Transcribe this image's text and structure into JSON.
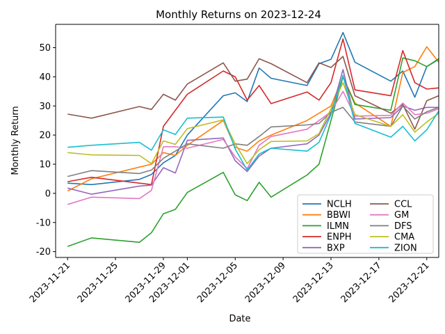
{
  "chart_data": {
    "type": "line",
    "title": "Monthly Returns on 2023-12-24",
    "xlabel": "Date",
    "ylabel": "Monthly Return",
    "ylim": [
      -22,
      58
    ],
    "xlim": [
      "2023-11-20",
      "2023-12-22"
    ],
    "yticks": [
      -20,
      -10,
      0,
      10,
      20,
      30,
      40,
      50
    ],
    "xticks": [
      "2023-11-21",
      "2023-11-25",
      "2023-11-29",
      "2023-12-01",
      "2023-12-05",
      "2023-12-09",
      "2023-12-13",
      "2023-12-17",
      "2023-12-21"
    ],
    "grid": false,
    "legend": {
      "position": "lower-right",
      "columns": 2
    },
    "x": [
      "2023-11-21",
      "2023-11-23",
      "2023-11-27",
      "2023-11-28",
      "2023-11-29",
      "2023-11-30",
      "2023-12-01",
      "2023-12-04",
      "2023-12-05",
      "2023-12-06",
      "2023-12-07",
      "2023-12-08",
      "2023-12-11",
      "2023-12-12",
      "2023-12-13",
      "2023-12-14",
      "2023-12-15",
      "2023-12-18",
      "2023-12-19",
      "2023-12-20",
      "2023-12-21",
      "2023-12-22"
    ],
    "series": [
      {
        "name": "NCLH",
        "color": "#1f77b4",
        "values": [
          3.5,
          3.0,
          4.8,
          6.5,
          10.5,
          13.0,
          20.0,
          33.5,
          34.5,
          31.5,
          43.0,
          39.5,
          37.0,
          44.5,
          46.0,
          55.2,
          45.0,
          38.5,
          42.0,
          33.0,
          43.5,
          46.0
        ]
      },
      {
        "name": "BBWI",
        "color": "#ff7f0e",
        "values": [
          0.8,
          5.0,
          9.0,
          10.0,
          14.0,
          13.0,
          16.5,
          25.0,
          15.8,
          14.5,
          18.0,
          20.0,
          25.0,
          27.5,
          30.0,
          40.0,
          31.0,
          23.0,
          41.5,
          43.5,
          50.3,
          45.0
        ]
      },
      {
        "name": "ILMN",
        "color": "#2ca02c",
        "values": [
          -18.2,
          -15.3,
          -16.8,
          -13.5,
          -7.0,
          -5.5,
          0.3,
          7.2,
          -0.5,
          -2.5,
          3.8,
          -1.3,
          6.3,
          10.0,
          25.0,
          40.0,
          30.5,
          28.5,
          46.5,
          45.5,
          43.5,
          46.2
        ]
      },
      {
        "name": "ENPH",
        "color": "#d62728",
        "values": [
          4.0,
          5.5,
          3.5,
          3.0,
          23.0,
          28.5,
          34.0,
          42.0,
          40.0,
          32.0,
          37.0,
          30.8,
          34.8,
          32.0,
          38.0,
          53.0,
          35.5,
          33.5,
          49.0,
          38.0,
          35.8,
          36.2
        ]
      },
      {
        "name": "BXP",
        "color": "#9467bd",
        "values": [
          1.8,
          -0.3,
          2.5,
          2.8,
          8.8,
          7.0,
          18.2,
          19.0,
          11.2,
          7.5,
          12.8,
          15.5,
          17.0,
          20.0,
          27.5,
          42.5,
          25.5,
          26.0,
          30.0,
          28.5,
          29.5,
          29.5
        ]
      },
      {
        "name": "CCL",
        "color": "#8c564b",
        "values": [
          27.2,
          25.8,
          29.8,
          28.8,
          34.0,
          32.0,
          37.5,
          44.8,
          38.5,
          39.2,
          46.2,
          44.5,
          38.0,
          44.8,
          43.2,
          47.0,
          33.5,
          27.5,
          30.5,
          22.0,
          31.8,
          33.5
        ]
      },
      {
        "name": "GM",
        "color": "#e377c2",
        "values": [
          -3.8,
          -1.3,
          -1.8,
          1.0,
          16.0,
          16.0,
          15.5,
          18.5,
          12.5,
          8.5,
          16.5,
          19.5,
          22.0,
          25.0,
          28.0,
          35.0,
          26.5,
          26.8,
          31.0,
          27.0,
          27.5,
          29.0
        ]
      },
      {
        "name": "DFS",
        "color": "#7f7f7f",
        "values": [
          5.8,
          7.8,
          6.8,
          8.0,
          12.0,
          14.5,
          17.0,
          15.5,
          17.0,
          16.5,
          19.5,
          22.8,
          23.5,
          24.0,
          27.8,
          29.5,
          24.5,
          23.0,
          30.0,
          25.5,
          28.0,
          29.5
        ]
      },
      {
        "name": "CMA",
        "color": "#bcbd22",
        "values": [
          14.0,
          13.2,
          13.0,
          10.2,
          18.0,
          16.8,
          22.2,
          25.2,
          17.0,
          10.2,
          15.0,
          17.8,
          18.0,
          20.5,
          29.0,
          38.0,
          27.0,
          23.0,
          27.0,
          21.0,
          24.5,
          27.5
        ]
      },
      {
        "name": "ZION",
        "color": "#17becf",
        "values": [
          15.8,
          16.5,
          17.5,
          14.8,
          21.8,
          20.2,
          25.8,
          26.2,
          15.2,
          8.0,
          13.5,
          15.5,
          14.5,
          17.5,
          27.0,
          40.5,
          24.0,
          19.3,
          23.0,
          18.0,
          21.8,
          28.3
        ]
      }
    ]
  }
}
